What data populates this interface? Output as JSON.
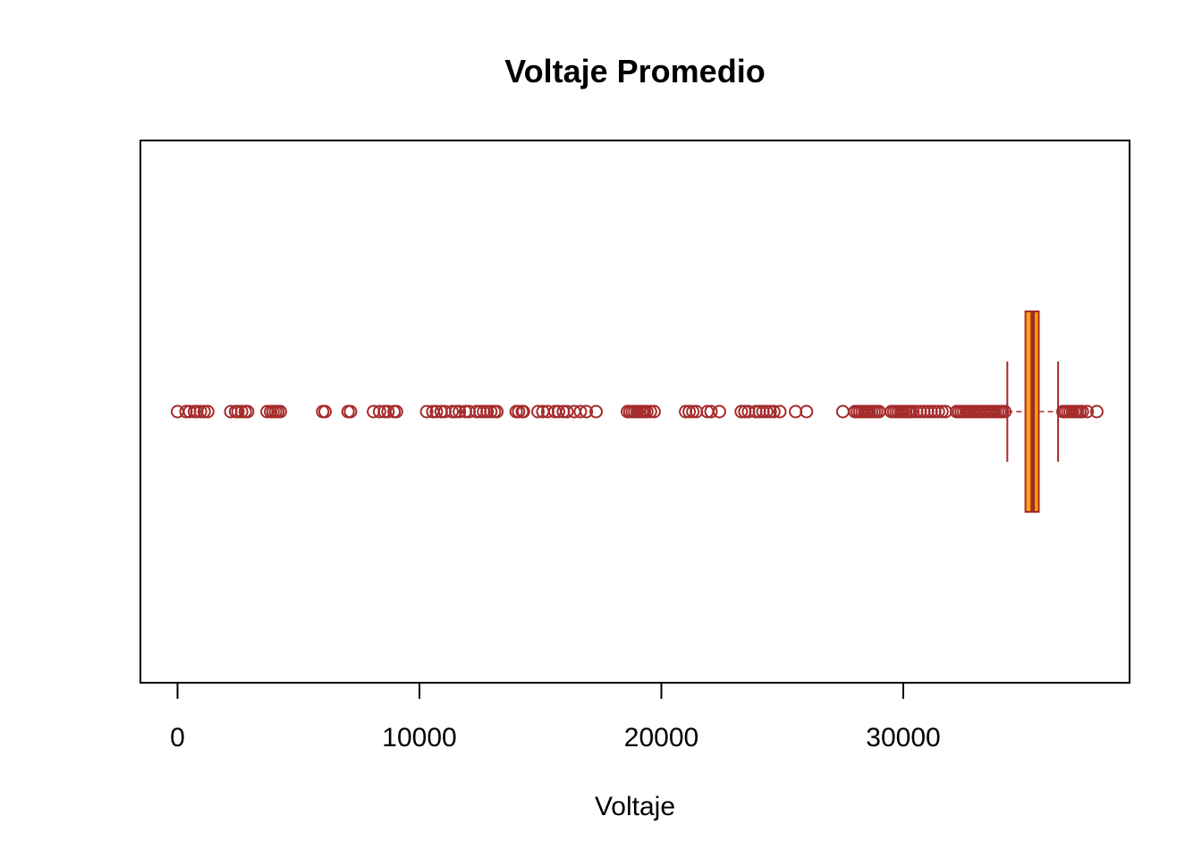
{
  "chart_data": {
    "type": "boxplot",
    "orientation": "horizontal",
    "title": "Voltaje Promedio",
    "xlabel": "Voltaje",
    "xlim": [
      -1400,
      39400
    ],
    "x_ticks": [
      0,
      10000,
      20000,
      30000
    ],
    "x_tick_labels": [
      "0",
      "10000",
      "20000",
      "30000"
    ],
    "grid": false,
    "colors": {
      "box_fill": "#FFA500",
      "border": "#A52A2A",
      "outlier": "#A52A2A",
      "frame": "#000000"
    },
    "box": {
      "whisker_low": 34300,
      "q1": 35050,
      "median": 35350,
      "q3": 35600,
      "whisker_high": 36400
    },
    "outliers": [
      0,
      350,
      500,
      700,
      800,
      950,
      1100,
      1250,
      2200,
      2400,
      2500,
      2650,
      2800,
      2900,
      3700,
      3850,
      3950,
      4050,
      4150,
      4250,
      6000,
      6100,
      7050,
      7150,
      8100,
      8350,
      8550,
      8700,
      8950,
      9050,
      10300,
      10550,
      10700,
      10900,
      11050,
      11350,
      11500,
      11650,
      11900,
      12050,
      12350,
      12500,
      12650,
      12800,
      12950,
      13100,
      13200,
      14000,
      14100,
      14250,
      14300,
      14900,
      15100,
      15300,
      15600,
      15750,
      15950,
      16100,
      16400,
      16650,
      16900,
      17300,
      18600,
      18700,
      18800,
      18900,
      19000,
      19100,
      19200,
      19300,
      19400,
      19550,
      19700,
      21000,
      21150,
      21300,
      21450,
      21900,
      22050,
      22400,
      23300,
      23450,
      23600,
      23900,
      24050,
      24200,
      24350,
      24500,
      24650,
      24900,
      25550,
      26000,
      27500,
      28000,
      28100,
      28200,
      28300,
      28400,
      28500,
      28600,
      28700,
      28800,
      28900,
      29000,
      29500,
      29600,
      29700,
      29800,
      29900,
      30000,
      30100,
      30200,
      30300,
      30400,
      30550,
      30700,
      30850,
      31000,
      31150,
      31300,
      31450,
      31600,
      31750,
      32200,
      32300,
      32400,
      32500,
      32600,
      32700,
      32800,
      32900,
      33000,
      33100,
      33200,
      33300,
      33400,
      33500,
      33600,
      33700,
      33800,
      33900,
      34000,
      34100,
      34200,
      36600,
      36700,
      36800,
      36900,
      37000,
      37100,
      37200,
      37300,
      37400,
      37600,
      38000
    ]
  }
}
